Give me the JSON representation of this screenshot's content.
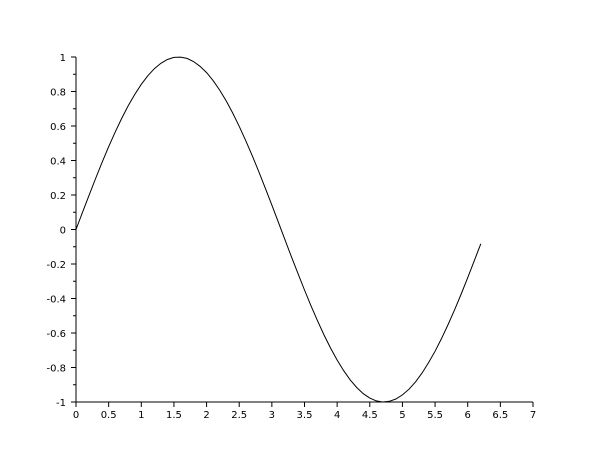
{
  "chart_data": {
    "type": "line",
    "title": "",
    "xlabel": "",
    "ylabel": "",
    "xlim": [
      0,
      7
    ],
    "ylim": [
      -1,
      1
    ],
    "grid": false,
    "x_ticks": [
      "0",
      "0.5",
      "1",
      "1.5",
      "2",
      "2.5",
      "3",
      "3.5",
      "4",
      "4.5",
      "5",
      "5.5",
      "6",
      "6.5",
      "7"
    ],
    "y_ticks": [
      "-1",
      "-0.8",
      "-0.6",
      "-0.4",
      "-0.2",
      "0",
      "0.2",
      "0.4",
      "0.6",
      "0.8",
      "1"
    ],
    "line_color": "#000000",
    "series": [
      {
        "x": [
          0,
          0.1,
          0.2,
          0.3,
          0.4,
          0.5,
          0.6,
          0.7,
          0.8,
          0.9,
          1.0,
          1.1,
          1.2,
          1.3,
          1.4,
          1.5,
          1.6,
          1.7,
          1.8,
          1.9,
          2.0,
          2.1,
          2.2,
          2.3,
          2.4,
          2.5,
          2.6,
          2.7,
          2.8,
          2.9,
          3.0,
          3.1,
          3.2,
          3.3,
          3.4,
          3.5,
          3.6,
          3.7,
          3.8,
          3.9,
          4.0,
          4.1,
          4.2,
          4.3,
          4.4,
          4.5,
          4.6,
          4.7,
          4.8,
          4.9,
          5.0,
          5.1,
          5.2,
          5.3,
          5.4,
          5.5,
          5.6,
          5.7,
          5.8,
          5.9,
          6.0,
          6.1,
          6.2
        ],
        "y": [
          0,
          0.0998,
          0.1987,
          0.2955,
          0.3894,
          0.4794,
          0.5646,
          0.6442,
          0.7174,
          0.7833,
          0.8415,
          0.8912,
          0.932,
          0.9636,
          0.9854,
          0.9975,
          0.9996,
          0.9917,
          0.9738,
          0.9463,
          0.9093,
          0.8632,
          0.8085,
          0.7457,
          0.6755,
          0.5985,
          0.5155,
          0.4274,
          0.335,
          0.2392,
          0.1411,
          0.0416,
          -0.0584,
          -0.1577,
          -0.2555,
          -0.3508,
          -0.4425,
          -0.5298,
          -0.6119,
          -0.6878,
          -0.7568,
          -0.8183,
          -0.8716,
          -0.9162,
          -0.9516,
          -0.9775,
          -0.9937,
          -0.9999,
          -0.9962,
          -0.9825,
          -0.9589,
          -0.9258,
          -0.8835,
          -0.8323,
          -0.7728,
          -0.7055,
          -0.6313,
          -0.5507,
          -0.4646,
          -0.3739,
          -0.2794,
          -0.1822,
          -0.0831
        ]
      }
    ]
  }
}
